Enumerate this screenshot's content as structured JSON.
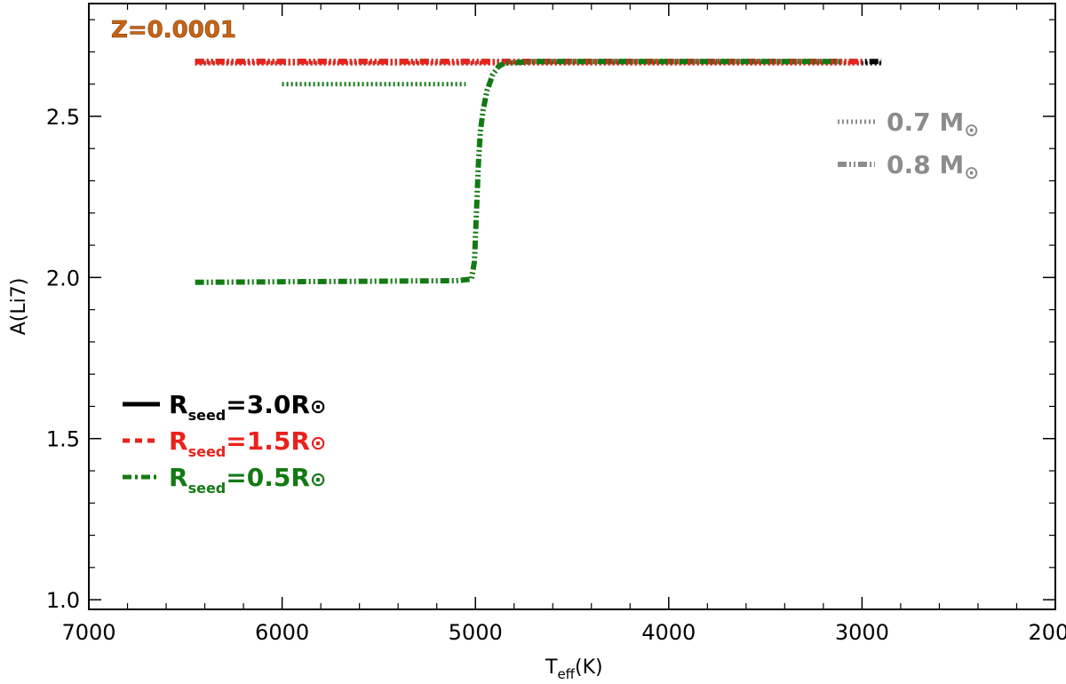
{
  "chart_data": {
    "type": "line",
    "annotation": "Z=0.0001",
    "xlabel": "T",
    "xlabel_sub": "eff",
    "xlabel_unit": "(K)",
    "ylabel": "A(Li7)",
    "xlim": [
      7000,
      2000
    ],
    "ylim": [
      0.97,
      2.85
    ],
    "x_ticks": [
      7000,
      6000,
      5000,
      4000,
      3000,
      2000
    ],
    "x_tick_labels": [
      "7000",
      "6000",
      "5000",
      "4000",
      "3000",
      "2000"
    ],
    "y_ticks": [
      1.0,
      1.5,
      2.0,
      2.5
    ],
    "y_tick_labels": [
      "1.0",
      "1.5",
      "2.0",
      "2.5"
    ],
    "colors": {
      "seed_3_0": "#000000",
      "seed_1_5": "#e8231c",
      "seed_0_5": "#137a13",
      "mass_legend": "#8c8c8c",
      "annotation": "#c86414"
    },
    "series": [
      {
        "color_key": "seed_3_0",
        "mass": "0.7",
        "dash": "dotted",
        "x": [
          6450,
          2900
        ],
        "y": [
          2.665,
          2.665
        ]
      },
      {
        "color_key": "seed_3_0",
        "mass": "0.8",
        "dash": "dashdotdot",
        "x": [
          6450,
          2900
        ],
        "y": [
          2.67,
          2.67
        ]
      },
      {
        "color_key": "seed_1_5",
        "mass": "0.7",
        "dash": "dotted",
        "x": [
          6450,
          3000
        ],
        "y": [
          2.665,
          2.665
        ]
      },
      {
        "color_key": "seed_1_5",
        "mass": "0.8",
        "dash": "dashdotdot",
        "x": [
          6450,
          3000
        ],
        "y": [
          2.67,
          2.67
        ]
      },
      {
        "color_key": "seed_0_5",
        "mass": "0.7",
        "dash": "dotted",
        "x": [
          6000,
          5750,
          5050
        ],
        "y": [
          2.6,
          2.6,
          2.6
        ]
      },
      {
        "color_key": "seed_0_5",
        "mass": "0.8",
        "dash": "dashdotdot",
        "x": [
          6450,
          5100,
          5020,
          5005,
          4995,
          4985,
          4975,
          4960,
          4940,
          4910,
          4880,
          4850,
          4700,
          3100
        ],
        "y": [
          1.985,
          1.99,
          1.995,
          2.05,
          2.2,
          2.35,
          2.45,
          2.52,
          2.58,
          2.63,
          2.655,
          2.665,
          2.67,
          2.67
        ]
      }
    ],
    "legend": {
      "seed_items": [
        {
          "color_key": "seed_3_0",
          "dash": "solid",
          "label_main": "R",
          "label_sub": "seed",
          "label_rest": "=3.0R",
          "symbol": "⊙"
        },
        {
          "color_key": "seed_1_5",
          "dash": "dashed",
          "label_main": "R",
          "label_sub": "seed",
          "label_rest": "=1.5R",
          "symbol": "⊙"
        },
        {
          "color_key": "seed_0_5",
          "dash": "dashdot",
          "label_main": "R",
          "label_sub": "seed",
          "label_rest": "=0.5R",
          "symbol": "⊙"
        }
      ],
      "mass_items": [
        {
          "dash": "dotted",
          "label": "0.7 M",
          "symbol": "⊙"
        },
        {
          "dash": "dashdotdot",
          "label": "0.8 M",
          "symbol": "⊙"
        }
      ]
    }
  }
}
